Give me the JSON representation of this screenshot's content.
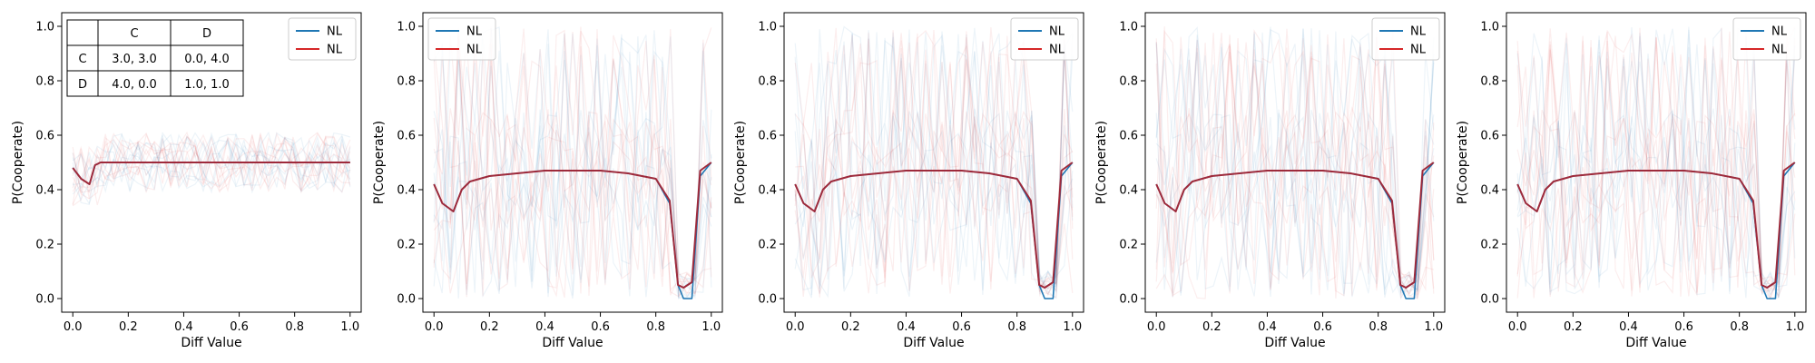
{
  "chart_data": [
    {
      "type": "line",
      "title": "",
      "xlabel": "Diff Value",
      "ylabel": "P(Cooperate)",
      "xlim": [
        -0.04,
        1.04
      ],
      "ylim": [
        -0.05,
        1.05
      ],
      "xticks": [
        "0.0",
        "0.2",
        "0.4",
        "0.6",
        "0.8",
        "1.0"
      ],
      "yticks": [
        "0.0",
        "0.2",
        "0.4",
        "0.6",
        "0.8",
        "1.0"
      ],
      "legend": {
        "placement": "top-right",
        "entries": [
          {
            "label": "NL",
            "color": "#1f77b4"
          },
          {
            "label": "NL",
            "color": "#d62728"
          }
        ]
      },
      "payoff_table": {
        "col_headers": [
          "",
          "C",
          "D"
        ],
        "rows": [
          {
            "label": "C",
            "cells": [
              "3.0, 3.0",
              "0.0, 4.0"
            ]
          },
          {
            "label": "D",
            "cells": [
              "4.0, 0.0",
              "1.0, 1.0"
            ]
          }
        ]
      },
      "x": [
        0.0,
        0.03,
        0.06,
        0.08,
        0.1,
        0.2,
        0.3,
        0.4,
        0.5,
        0.6,
        0.7,
        0.8,
        0.9,
        1.0
      ],
      "series": [
        {
          "color": "#1f77b4",
          "values": [
            0.48,
            0.44,
            0.42,
            0.49,
            0.5,
            0.5,
            0.5,
            0.5,
            0.5,
            0.5,
            0.5,
            0.5,
            0.5,
            0.5
          ]
        },
        {
          "color": "#9e2a3b",
          "values": [
            0.48,
            0.44,
            0.42,
            0.49,
            0.5,
            0.5,
            0.5,
            0.5,
            0.5,
            0.5,
            0.5,
            0.5,
            0.5,
            0.5
          ]
        }
      ]
    },
    {
      "type": "line",
      "title": "",
      "xlabel": "Diff Value",
      "ylabel": "P(Cooperate)",
      "xlim": [
        -0.04,
        1.04
      ],
      "ylim": [
        -0.05,
        1.05
      ],
      "xticks": [
        "0.0",
        "0.2",
        "0.4",
        "0.6",
        "0.8",
        "1.0"
      ],
      "yticks": [
        "0.0",
        "0.2",
        "0.4",
        "0.6",
        "0.8",
        "1.0"
      ],
      "legend": {
        "placement": "top-left",
        "entries": [
          {
            "label": "NL",
            "color": "#1f77b4"
          },
          {
            "label": "NL",
            "color": "#d62728"
          }
        ]
      },
      "x": [
        0.0,
        0.03,
        0.07,
        0.1,
        0.13,
        0.2,
        0.3,
        0.4,
        0.5,
        0.6,
        0.7,
        0.8,
        0.85,
        0.88,
        0.9,
        0.93,
        0.96,
        1.0
      ],
      "series": [
        {
          "color": "#1f77b4",
          "values": [
            0.42,
            0.35,
            0.32,
            0.4,
            0.43,
            0.45,
            0.46,
            0.47,
            0.47,
            0.47,
            0.46,
            0.44,
            0.35,
            0.05,
            0.0,
            0.0,
            0.45,
            0.5
          ]
        },
        {
          "color": "#9e2a3b",
          "values": [
            0.42,
            0.35,
            0.32,
            0.4,
            0.43,
            0.45,
            0.46,
            0.47,
            0.47,
            0.47,
            0.46,
            0.44,
            0.36,
            0.05,
            0.04,
            0.06,
            0.47,
            0.5
          ]
        }
      ]
    },
    {
      "type": "line",
      "title": "",
      "xlabel": "Diff Value",
      "ylabel": "P(Cooperate)",
      "xlim": [
        -0.04,
        1.04
      ],
      "ylim": [
        -0.05,
        1.05
      ],
      "xticks": [
        "0.0",
        "0.2",
        "0.4",
        "0.6",
        "0.8",
        "1.0"
      ],
      "yticks": [
        "0.0",
        "0.2",
        "0.4",
        "0.6",
        "0.8",
        "1.0"
      ],
      "legend": {
        "placement": "top-right",
        "entries": [
          {
            "label": "NL",
            "color": "#1f77b4"
          },
          {
            "label": "NL",
            "color": "#d62728"
          }
        ]
      },
      "x": [
        0.0,
        0.03,
        0.07,
        0.1,
        0.13,
        0.2,
        0.3,
        0.4,
        0.5,
        0.6,
        0.7,
        0.8,
        0.85,
        0.88,
        0.9,
        0.93,
        0.96,
        1.0
      ],
      "series": [
        {
          "color": "#1f77b4",
          "values": [
            0.42,
            0.35,
            0.32,
            0.4,
            0.43,
            0.45,
            0.46,
            0.47,
            0.47,
            0.47,
            0.46,
            0.44,
            0.35,
            0.05,
            0.0,
            0.0,
            0.45,
            0.5
          ]
        },
        {
          "color": "#9e2a3b",
          "values": [
            0.42,
            0.35,
            0.32,
            0.4,
            0.43,
            0.45,
            0.46,
            0.47,
            0.47,
            0.47,
            0.46,
            0.44,
            0.36,
            0.05,
            0.04,
            0.06,
            0.47,
            0.5
          ]
        }
      ]
    },
    {
      "type": "line",
      "title": "",
      "xlabel": "Diff Value",
      "ylabel": "P(Cooperate)",
      "xlim": [
        -0.04,
        1.04
      ],
      "ylim": [
        -0.05,
        1.05
      ],
      "xticks": [
        "0.0",
        "0.2",
        "0.4",
        "0.6",
        "0.8",
        "1.0"
      ],
      "yticks": [
        "0.0",
        "0.2",
        "0.4",
        "0.6",
        "0.8",
        "1.0"
      ],
      "legend": {
        "placement": "top-right",
        "entries": [
          {
            "label": "NL",
            "color": "#1f77b4"
          },
          {
            "label": "NL",
            "color": "#d62728"
          }
        ]
      },
      "x": [
        0.0,
        0.03,
        0.07,
        0.1,
        0.13,
        0.2,
        0.3,
        0.4,
        0.5,
        0.6,
        0.7,
        0.8,
        0.85,
        0.88,
        0.9,
        0.93,
        0.96,
        1.0
      ],
      "series": [
        {
          "color": "#1f77b4",
          "values": [
            0.42,
            0.35,
            0.32,
            0.4,
            0.43,
            0.45,
            0.46,
            0.47,
            0.47,
            0.47,
            0.46,
            0.44,
            0.35,
            0.05,
            0.0,
            0.0,
            0.45,
            0.5
          ]
        },
        {
          "color": "#9e2a3b",
          "values": [
            0.42,
            0.35,
            0.32,
            0.4,
            0.43,
            0.45,
            0.46,
            0.47,
            0.47,
            0.47,
            0.46,
            0.44,
            0.36,
            0.05,
            0.04,
            0.06,
            0.47,
            0.5
          ]
        }
      ]
    },
    {
      "type": "line",
      "title": "",
      "xlabel": "Diff Value",
      "ylabel": "P(Cooperate)",
      "xlim": [
        -0.04,
        1.04
      ],
      "ylim": [
        -0.05,
        1.05
      ],
      "xticks": [
        "0.0",
        "0.2",
        "0.4",
        "0.6",
        "0.8",
        "1.0"
      ],
      "yticks": [
        "0.0",
        "0.2",
        "0.4",
        "0.6",
        "0.8",
        "1.0"
      ],
      "legend": {
        "placement": "top-right",
        "entries": [
          {
            "label": "NL",
            "color": "#1f77b4"
          },
          {
            "label": "NL",
            "color": "#d62728"
          }
        ]
      },
      "x": [
        0.0,
        0.03,
        0.07,
        0.1,
        0.13,
        0.2,
        0.3,
        0.4,
        0.5,
        0.6,
        0.7,
        0.8,
        0.85,
        0.88,
        0.9,
        0.93,
        0.96,
        1.0
      ],
      "series": [
        {
          "color": "#1f77b4",
          "values": [
            0.42,
            0.35,
            0.32,
            0.4,
            0.43,
            0.45,
            0.46,
            0.47,
            0.47,
            0.47,
            0.46,
            0.44,
            0.35,
            0.05,
            0.0,
            0.0,
            0.45,
            0.5
          ]
        },
        {
          "color": "#9e2a3b",
          "values": [
            0.42,
            0.35,
            0.32,
            0.4,
            0.43,
            0.45,
            0.46,
            0.47,
            0.47,
            0.47,
            0.46,
            0.44,
            0.36,
            0.05,
            0.04,
            0.06,
            0.47,
            0.5
          ]
        }
      ]
    }
  ]
}
